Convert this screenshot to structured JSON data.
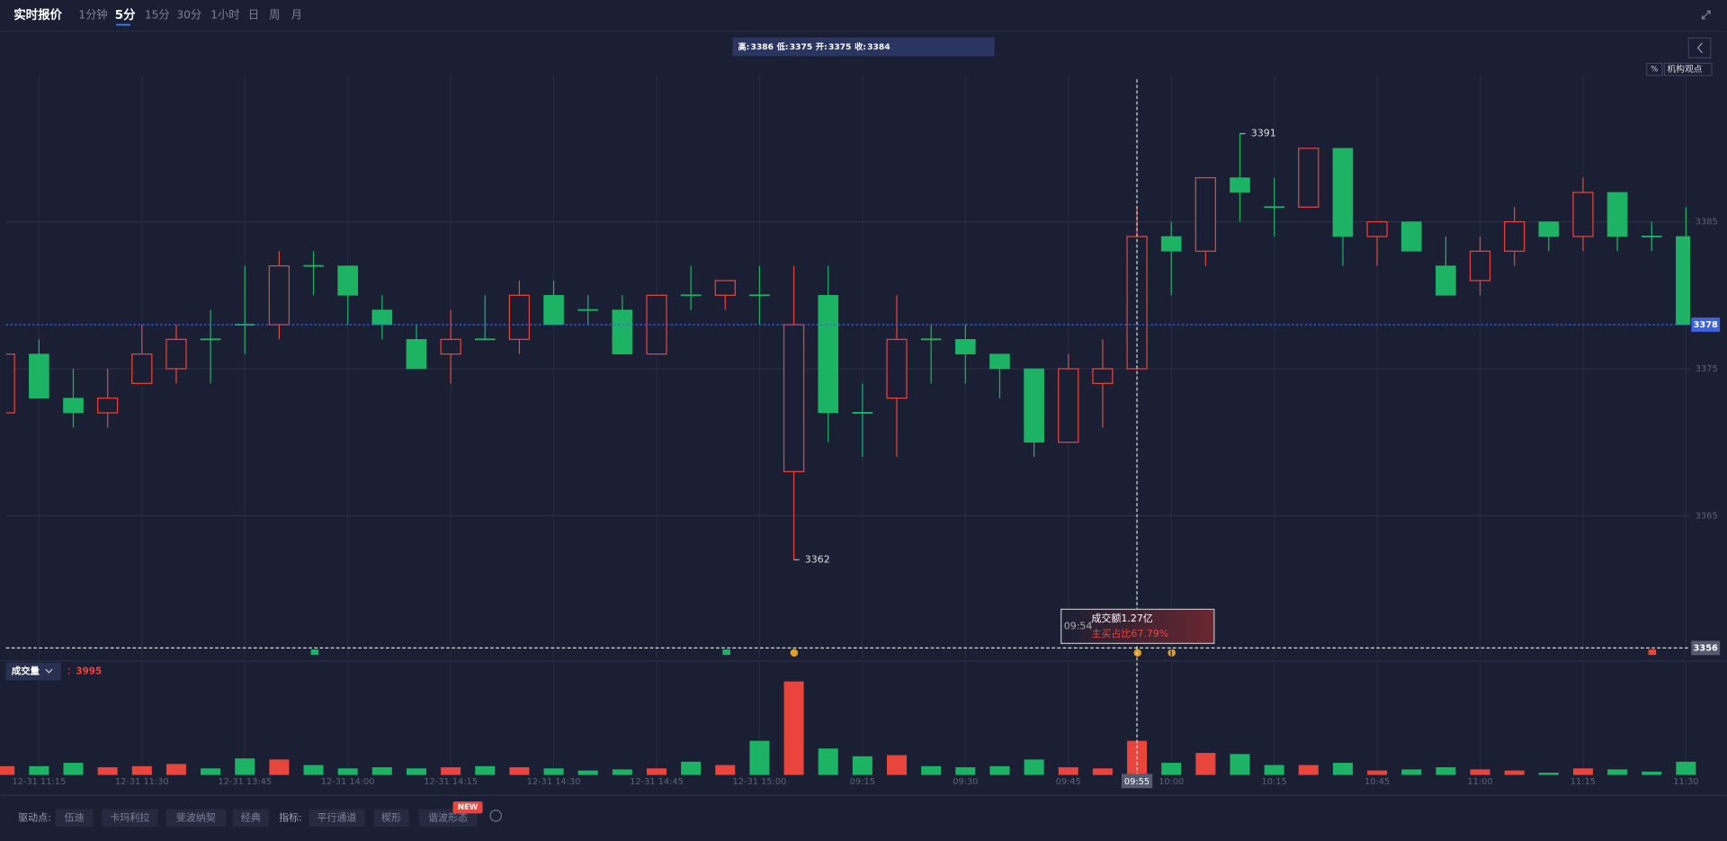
{
  "header": {
    "title": "实时报价",
    "tabs": [
      "1分钟",
      "5分",
      "15分",
      "30分",
      "1小时",
      "日",
      "周",
      "月"
    ],
    "active_tab": 1
  },
  "side_buttons": [
    "%",
    "机构观点"
  ],
  "volume_menu": "成交量",
  "volume_prefix": "：",
  "ohlc_labels": [
    "高:",
    "低:",
    "开:",
    "收:"
  ],
  "hover_box": {
    "time": "09:54",
    "amount": "成交额1.27亿",
    "ratio": "主买占比67.79%"
  },
  "toolbar": {
    "pivot_label": "驱动点:",
    "pivots": [
      "伍迪",
      "卡玛利拉",
      "斐波纳契",
      "经典"
    ],
    "indicator_label": "指标:",
    "indicators": [
      "平行通道",
      "楔形",
      "谐波形态"
    ],
    "badge": "NEW"
  },
  "chart_data": {
    "type": "candlestick",
    "categories": [
      null,
      "12-31 11:15",
      null,
      null,
      "12-31 11:30",
      null,
      null,
      "12-31 13:45",
      null,
      null,
      "12-31 14:00",
      null,
      null,
      "12-31 14:15",
      null,
      null,
      "12-31 14:30",
      null,
      null,
      "12-31 14:45",
      null,
      null,
      "12-31 15:00",
      null,
      null,
      "09:15",
      null,
      null,
      "09:30",
      null,
      null,
      "09:45",
      null,
      "09:55",
      "10:00",
      null,
      null,
      "10:15",
      null,
      null,
      "10:45",
      null,
      null,
      "11:00",
      null,
      null,
      "11:15",
      null,
      null,
      "11:30"
    ],
    "open": [
      3372,
      3376,
      3373,
      3372,
      3374,
      3375,
      3377,
      3378,
      3378,
      3382,
      3382,
      3379,
      3377,
      3376,
      3377,
      3377,
      3380,
      3379,
      3379,
      3376,
      3380,
      3380,
      3380,
      3368,
      3380,
      3372,
      3373,
      3377,
      3377,
      3376,
      3375,
      3370,
      3374,
      3375,
      3384,
      3383,
      3388,
      3386,
      3386,
      3390,
      3384,
      3385,
      3382,
      3381,
      3383,
      3385,
      3384,
      3387,
      3384,
      3384
    ],
    "high": [
      3379,
      3377,
      3375,
      3375,
      3378,
      3378,
      3379,
      3382,
      3383,
      3383,
      3382,
      3380,
      3378,
      3379,
      3380,
      3381,
      3381,
      3380,
      3380,
      3380,
      3382,
      3381,
      3382,
      3382,
      3382,
      3374,
      3380,
      3378,
      3378,
      3376,
      3375,
      3376,
      3377,
      3386,
      3385,
      3388,
      3391,
      3388,
      3390,
      3390,
      3385,
      3385,
      3384,
      3384,
      3386,
      3385,
      3388,
      3387,
      3385,
      3386
    ],
    "low": [
      3371,
      3373,
      3371,
      3371,
      3374,
      3374,
      3374,
      3376,
      3377,
      3380,
      3378,
      3377,
      3375,
      3374,
      3377,
      3376,
      3378,
      3378,
      3376,
      3376,
      3379,
      3379,
      3378,
      3362,
      3370,
      3369,
      3369,
      3374,
      3374,
      3373,
      3369,
      3370,
      3371,
      3375,
      3380,
      3382,
      3385,
      3384,
      3386,
      3382,
      3382,
      3383,
      3380,
      3380,
      3382,
      3383,
      3383,
      3383,
      3383,
      3378
    ],
    "close": [
      3376,
      3373,
      3372,
      3373,
      3376,
      3377,
      3377,
      3378,
      3382,
      3382,
      3380,
      3378,
      3375,
      3377,
      3377,
      3380,
      3378,
      3379,
      3376,
      3380,
      3380,
      3381,
      3380,
      3378,
      3372,
      3372,
      3377,
      3377,
      3376,
      3375,
      3370,
      3375,
      3375,
      3384,
      3383,
      3388,
      3387,
      3386,
      3390,
      3384,
      3385,
      3383,
      3380,
      3383,
      3385,
      3384,
      3387,
      3384,
      3384,
      3378
    ],
    "volume": [
      1030,
      1030,
      1420,
      900,
      1030,
      1290,
      770,
      1940,
      1810,
      1160,
      770,
      900,
      770,
      900,
      1030,
      900,
      770,
      520,
      650,
      770,
      1550,
      1160,
      4000,
      10960,
      3100,
      2190,
      2320,
      1030,
      900,
      1030,
      1810,
      900,
      770,
      3995,
      1420,
      2580,
      2450,
      1160,
      1160,
      1420,
      520,
      650,
      900,
      650,
      520,
      260,
      770,
      650,
      390,
      1550
    ],
    "up_color": "#e8453c",
    "down_color": "#1db365",
    "ylim": [
      3355,
      3395
    ],
    "yticks": [
      3365,
      3375,
      3385
    ],
    "volume_ylim": [
      0,
      12000
    ],
    "crosshair": {
      "index": 33,
      "price": 3356
    },
    "grid": true
  }
}
